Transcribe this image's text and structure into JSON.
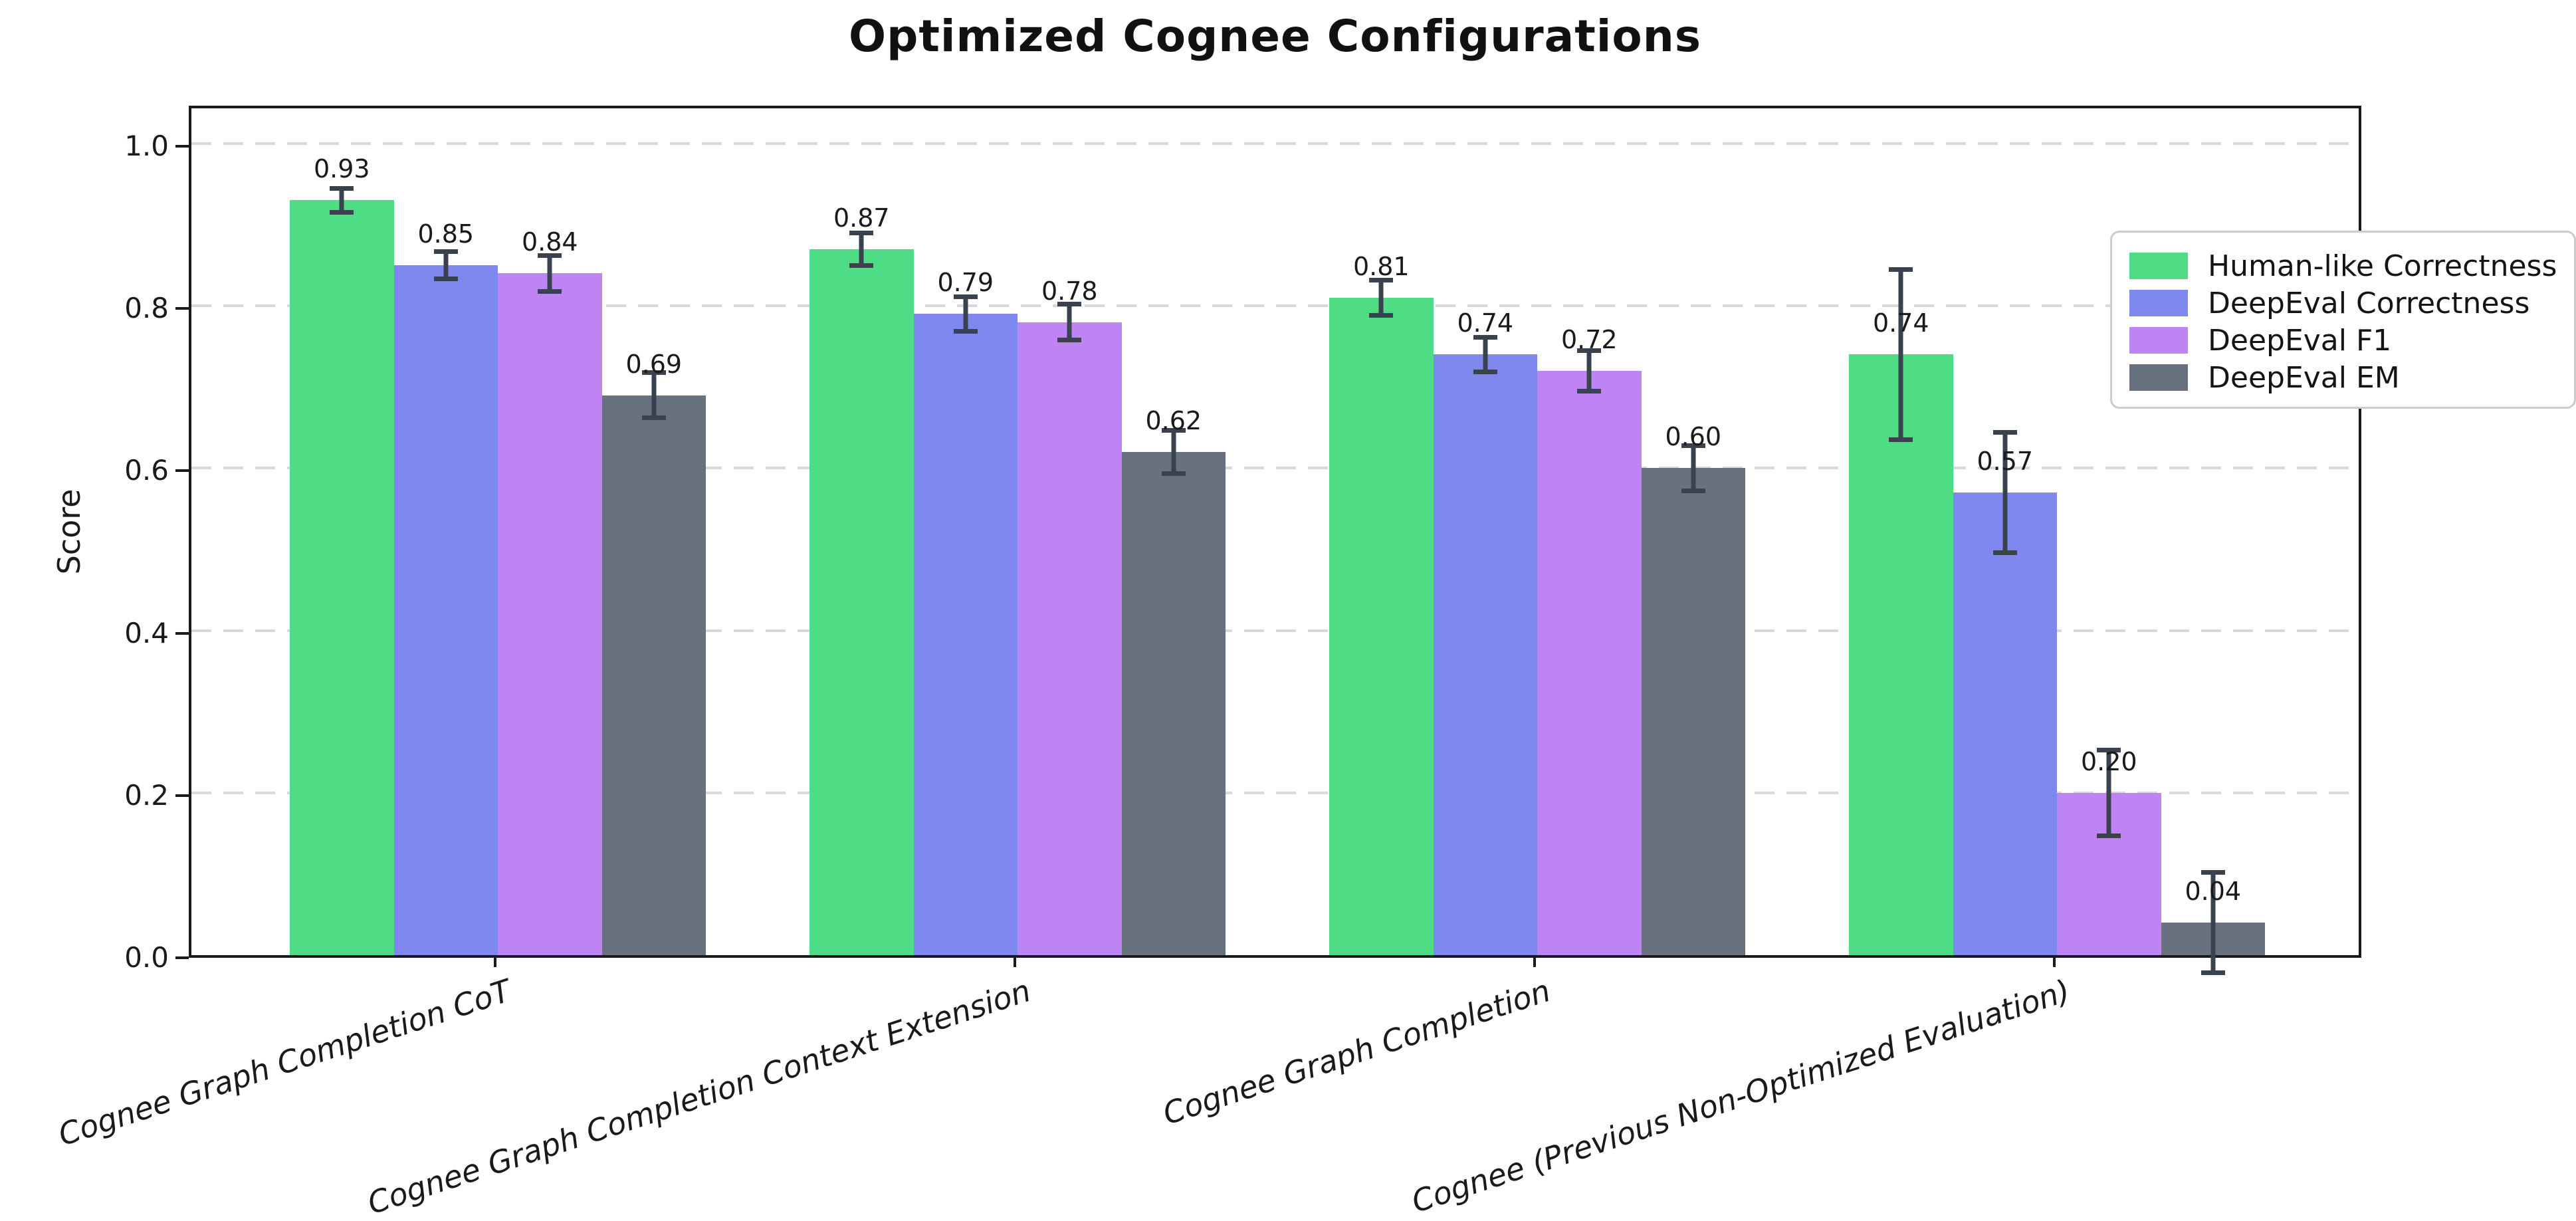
{
  "chart_data": {
    "type": "bar",
    "title": "Optimized Cognee Configurations",
    "ylabel": "Score",
    "xlabel": "",
    "ylim": [
      0,
      1.05
    ],
    "yticks": [
      0.0,
      0.2,
      0.4,
      0.6,
      0.8,
      1.0
    ],
    "grid": {
      "axis": "y",
      "style": "dashed",
      "color": "#d9d9d9"
    },
    "legend_position": "upper right",
    "value_label_decimals": 2,
    "error_bar_color": "#3a4250",
    "categories": [
      "Cognee Graph Completion CoT",
      "Cognee Graph Completion Context Extension",
      "Cognee Graph Completion",
      "Cognee (Previous Non-Optimized Evaluation)"
    ],
    "series": [
      {
        "name": "Human-like Correctness",
        "color": "#4edc84",
        "values": [
          0.93,
          0.87,
          0.81,
          0.74
        ],
        "errors": [
          0.015,
          0.02,
          0.022,
          0.105
        ]
      },
      {
        "name": "DeepEval Correctness",
        "color": "#7f88ee",
        "values": [
          0.85,
          0.79,
          0.74,
          0.57
        ],
        "errors": [
          0.017,
          0.021,
          0.021,
          0.074
        ]
      },
      {
        "name": "DeepEval F1",
        "color": "#bf84f4",
        "values": [
          0.84,
          0.78,
          0.72,
          0.2
        ],
        "errors": [
          0.022,
          0.022,
          0.025,
          0.053
        ]
      },
      {
        "name": "DeepEval EM",
        "color": "#68727f",
        "values": [
          0.69,
          0.62,
          0.6,
          0.04
        ],
        "errors": [
          0.028,
          0.027,
          0.028,
          0.062
        ]
      }
    ]
  }
}
